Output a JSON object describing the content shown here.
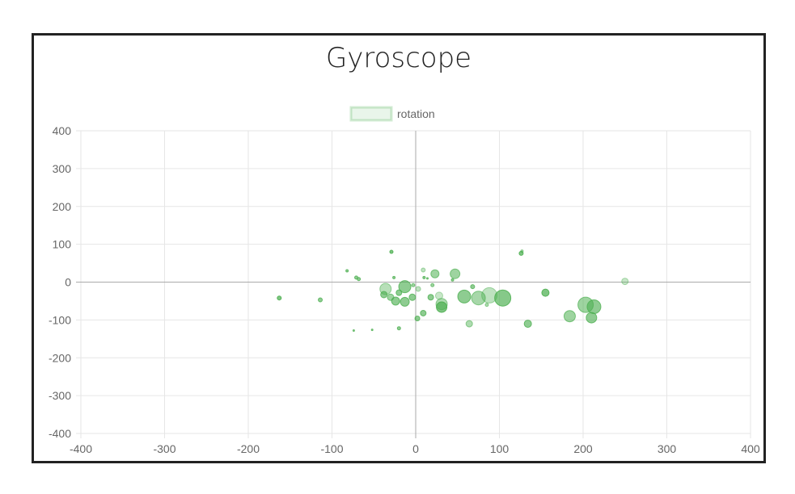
{
  "chart_data": {
    "type": "scatter",
    "title": "Gyroscope",
    "legend": {
      "label": "rotation",
      "placement": "top-center"
    },
    "xlim": [
      -400,
      400
    ],
    "ylim": [
      -400,
      400
    ],
    "x_ticks": [
      -400,
      -300,
      -200,
      -100,
      0,
      100,
      200,
      300,
      400
    ],
    "y_ticks": [
      400,
      300,
      200,
      100,
      0,
      -100,
      -200,
      -300,
      -400
    ],
    "grid": true,
    "series": [
      {
        "name": "rotation",
        "color": "#4caf50",
        "points": [
          {
            "x": -163,
            "y": -42,
            "r": 2.5,
            "a": 0.8
          },
          {
            "x": -114,
            "y": -47,
            "r": 2.5,
            "a": 0.7
          },
          {
            "x": -82,
            "y": 30,
            "r": 1.5,
            "a": 0.7
          },
          {
            "x": -71,
            "y": 12,
            "r": 2,
            "a": 0.7
          },
          {
            "x": -68,
            "y": 8,
            "r": 2,
            "a": 0.7
          },
          {
            "x": -74,
            "y": -128,
            "r": 1,
            "a": 0.7
          },
          {
            "x": -52,
            "y": -126,
            "r": 1,
            "a": 0.7
          },
          {
            "x": -29,
            "y": 80,
            "r": 2,
            "a": 0.8
          },
          {
            "x": -26,
            "y": 12,
            "r": 1.5,
            "a": 0.7
          },
          {
            "x": -36,
            "y": -18,
            "r": 7,
            "a": 0.45
          },
          {
            "x": -38,
            "y": -33,
            "r": 4,
            "a": 0.7
          },
          {
            "x": -30,
            "y": -40,
            "r": 4,
            "a": 0.6
          },
          {
            "x": -24,
            "y": -50,
            "r": 5,
            "a": 0.7
          },
          {
            "x": -20,
            "y": -28,
            "r": 3.5,
            "a": 0.7
          },
          {
            "x": -13,
            "y": -12,
            "r": 7.5,
            "a": 0.7
          },
          {
            "x": -13,
            "y": -52,
            "r": 5.5,
            "a": 0.7
          },
          {
            "x": -4,
            "y": -40,
            "r": 4,
            "a": 0.7
          },
          {
            "x": -3,
            "y": -8,
            "r": 2,
            "a": 0.6
          },
          {
            "x": 3,
            "y": -18,
            "r": 3,
            "a": 0.4
          },
          {
            "x": -20,
            "y": -122,
            "r": 2,
            "a": 0.7
          },
          {
            "x": 2,
            "y": -96,
            "r": 3,
            "a": 0.7
          },
          {
            "x": 9,
            "y": -82,
            "r": 3.5,
            "a": 0.7
          },
          {
            "x": 9,
            "y": 32,
            "r": 2.5,
            "a": 0.4
          },
          {
            "x": 10,
            "y": 12,
            "r": 1.5,
            "a": 0.7
          },
          {
            "x": 14,
            "y": 10,
            "r": 1,
            "a": 0.7
          },
          {
            "x": 20,
            "y": -8,
            "r": 2,
            "a": 0.6
          },
          {
            "x": 23,
            "y": 22,
            "r": 5,
            "a": 0.6
          },
          {
            "x": 18,
            "y": -40,
            "r": 3.5,
            "a": 0.7
          },
          {
            "x": 28,
            "y": -36,
            "r": 4.5,
            "a": 0.35
          },
          {
            "x": 31,
            "y": -58,
            "r": 7,
            "a": 0.5
          },
          {
            "x": 31,
            "y": -66,
            "r": 6.5,
            "a": 0.8
          },
          {
            "x": 44,
            "y": 6,
            "r": 1.5,
            "a": 0.7
          },
          {
            "x": 47,
            "y": 22,
            "r": 6,
            "a": 0.6
          },
          {
            "x": 58,
            "y": -38,
            "r": 8,
            "a": 0.7
          },
          {
            "x": 68,
            "y": -12,
            "r": 2.5,
            "a": 0.7
          },
          {
            "x": 64,
            "y": -110,
            "r": 4,
            "a": 0.5
          },
          {
            "x": 75,
            "y": -42,
            "r": 8.5,
            "a": 0.55
          },
          {
            "x": 85,
            "y": -60,
            "r": 2,
            "a": 0.5
          },
          {
            "x": 88,
            "y": -35,
            "r": 9.5,
            "a": 0.4
          },
          {
            "x": 104,
            "y": -42,
            "r": 10,
            "a": 0.75
          },
          {
            "x": 126,
            "y": 76,
            "r": 2.5,
            "a": 0.8
          },
          {
            "x": 127,
            "y": 82,
            "r": 1.5,
            "a": 0.5
          },
          {
            "x": 134,
            "y": -110,
            "r": 4.5,
            "a": 0.7
          },
          {
            "x": 155,
            "y": -28,
            "r": 4.5,
            "a": 0.8
          },
          {
            "x": 184,
            "y": -90,
            "r": 7,
            "a": 0.6
          },
          {
            "x": 203,
            "y": -60,
            "r": 9.5,
            "a": 0.6
          },
          {
            "x": 210,
            "y": -94,
            "r": 6.5,
            "a": 0.7
          },
          {
            "x": 213,
            "y": -65,
            "r": 8.5,
            "a": 0.7
          },
          {
            "x": 250,
            "y": 2,
            "r": 4,
            "a": 0.35
          }
        ]
      }
    ]
  }
}
